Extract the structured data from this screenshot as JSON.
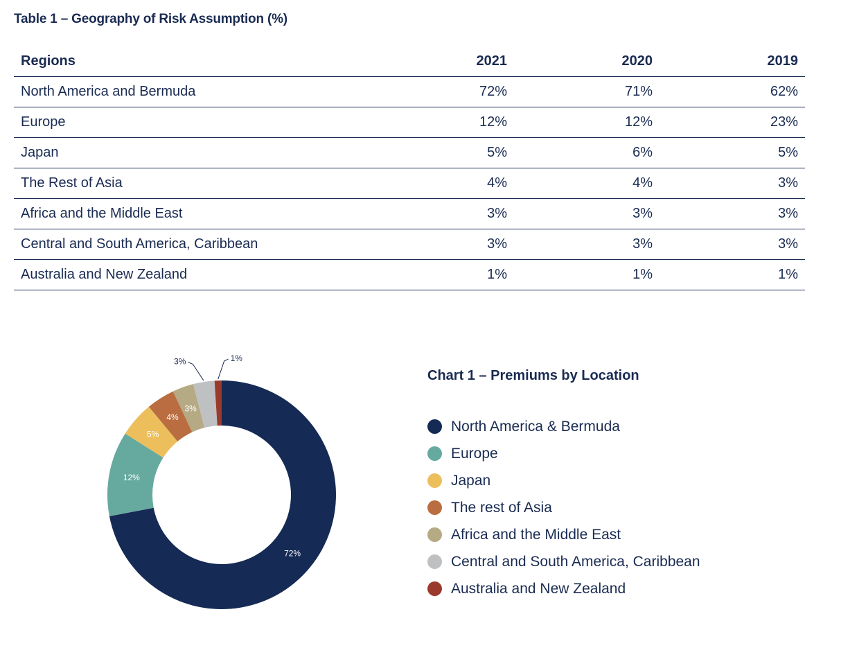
{
  "table": {
    "title": "Table 1 – Geography of Risk Assumption (%)",
    "headers": [
      "Regions",
      "2021",
      "2020",
      "2019"
    ],
    "rows": [
      [
        "North America and Bermuda",
        "72%",
        "71%",
        "62%"
      ],
      [
        "Europe",
        "12%",
        "12%",
        "23%"
      ],
      [
        "Japan",
        "5%",
        "6%",
        "5%"
      ],
      [
        "The Rest of Asia",
        "4%",
        "4%",
        "3%"
      ],
      [
        "Africa and the Middle East",
        "3%",
        "3%",
        "3%"
      ],
      [
        "Central and South America, Caribbean",
        "3%",
        "3%",
        "3%"
      ],
      [
        "Australia and New Zealand",
        "1%",
        "1%",
        "1%"
      ]
    ]
  },
  "chart_data": {
    "type": "pie",
    "variant": "donut",
    "title": "Chart 1 – Premiums by Location",
    "legend_position": "right",
    "categories": [
      "North America & Bermuda",
      "Europe",
      "Japan",
      "The rest of Asia",
      "Africa and the Middle East",
      "Central and South America, Caribbean",
      "Australia and New Zealand"
    ],
    "values": [
      72,
      12,
      5,
      4,
      3,
      3,
      1
    ],
    "labels": [
      "72%",
      "12%",
      "5%",
      "4%",
      "3%",
      "3%",
      "1%"
    ],
    "colors": [
      "#152a54",
      "#66aa9f",
      "#ecbf5c",
      "#b96d40",
      "#b5aa84",
      "#bfc0c2",
      "#9a3a2c"
    ]
  }
}
